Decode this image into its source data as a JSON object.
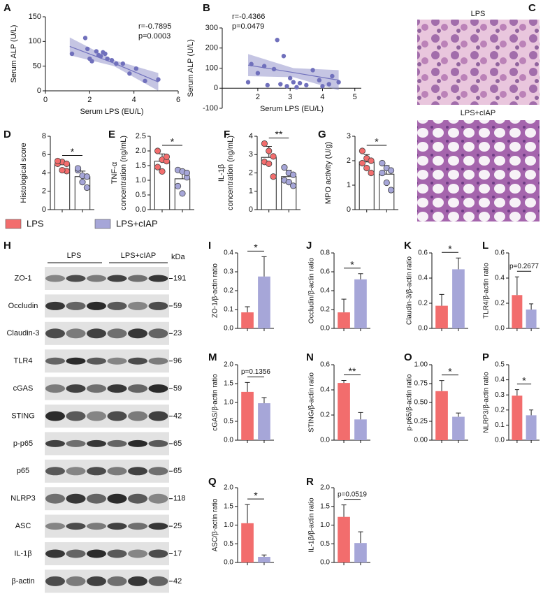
{
  "chart_data": [
    {
      "type": "scatter",
      "panel": "A",
      "x": [
        1.2,
        1.8,
        1.9,
        2.0,
        2.1,
        2.3,
        2.4,
        2.5,
        2.6,
        2.7,
        2.8,
        3.0,
        3.2,
        3.5,
        3.8,
        4.1,
        4.5,
        5.1
      ],
      "y": [
        75,
        107,
        85,
        65,
        60,
        80,
        72,
        70,
        78,
        75,
        65,
        62,
        55,
        55,
        35,
        45,
        20,
        23
      ],
      "color": "#7070bc",
      "fit": {
        "x": [
          1.1,
          3.1,
          5.1
        ],
        "y": [
          90,
          56,
          18
        ],
        "lower": [
          72,
          50,
          0
        ],
        "upper": [
          108,
          62,
          36
        ]
      },
      "fit_color": "#8c8cc8",
      "xlim": [
        0,
        6
      ],
      "ylim": [
        0,
        150
      ],
      "xticks": [
        0,
        2,
        4,
        6
      ],
      "yticks": [
        0,
        50,
        100,
        150
      ],
      "xlabel": "Serum LPS (EU/L)",
      "ylabel": "Serum ALP (U/L)",
      "annotations": [
        "r=-0.7895",
        "p=0.0003"
      ]
    },
    {
      "type": "scatter",
      "panel": "B",
      "x": [
        1.7,
        1.8,
        2.0,
        2.2,
        2.3,
        2.5,
        2.6,
        2.7,
        2.8,
        2.9,
        3.0,
        3.1,
        3.2,
        3.3,
        3.5,
        3.7,
        3.9,
        4.0,
        4.2,
        4.3,
        4.5
      ],
      "y": [
        30,
        120,
        75,
        110,
        15,
        95,
        240,
        20,
        160,
        10,
        50,
        30,
        5,
        25,
        15,
        90,
        40,
        10,
        20,
        60,
        30
      ],
      "color": "#7070bc",
      "fit": {
        "x": [
          1.7,
          3.1,
          4.5
        ],
        "y": [
          115,
          78,
          40
        ],
        "lower": [
          60,
          55,
          -10
        ],
        "upper": [
          170,
          100,
          90
        ]
      },
      "fit_color": "#8c8cc8",
      "xlim": [
        0.9,
        5.2
      ],
      "ylim": [
        -100,
        300
      ],
      "xticks": [
        2,
        3,
        4,
        5
      ],
      "yticks": [
        -100,
        0,
        100,
        200,
        300
      ],
      "xlabel": "Serum LPS (EU/L)",
      "ylabel": "Serum ALP (U/L)",
      "annotations": [
        "r=-0.4366",
        "p=0.0479"
      ]
    },
    {
      "type": "bar",
      "panel": "D",
      "values": [
        4.9,
        3.6
      ],
      "errors": [
        0.4,
        0.6
      ],
      "points": [
        [
          5.0,
          5.2,
          4.2,
          5.3,
          4.3,
          5.0
        ],
        [
          4.3,
          3.7,
          2.4,
          4.5,
          3.0,
          3.6
        ]
      ],
      "ylim": [
        0,
        8
      ],
      "yticks": [
        0,
        2,
        4,
        6,
        8
      ],
      "ylabel": [
        "Histological score"
      ],
      "significance": "*"
    },
    {
      "type": "bar",
      "panel": "E",
      "values": [
        1.65,
        1.05
      ],
      "errors": [
        0.25,
        0.3
      ],
      "points": [
        [
          2.0,
          1.7,
          1.65,
          1.45,
          1.3,
          1.8
        ],
        [
          1.35,
          1.3,
          1.1,
          0.8,
          0.55,
          1.25
        ]
      ],
      "ylim": [
        0,
        2.5
      ],
      "yticks": [
        {
          "value": 0,
          "label": "0.0"
        },
        0.5,
        {
          "value": 1,
          "label": "1.0"
        },
        1.5,
        {
          "value": 2,
          "label": "2.0"
        },
        2.5
      ],
      "ylabel": [
        "TNF-α",
        "concentration (ng/mL)"
      ],
      "significance": "*"
    },
    {
      "type": "bar",
      "panel": "F",
      "values": [
        2.85,
        1.8
      ],
      "errors": [
        0.6,
        0.35
      ],
      "points": [
        [
          3.6,
          3.2,
          2.9,
          2.6,
          2.5,
          1.8
        ],
        [
          2.3,
          2.0,
          1.9,
          1.6,
          1.5,
          1.3
        ]
      ],
      "ylim": [
        0,
        4
      ],
      "yticks": [
        0,
        1,
        2,
        3,
        4
      ],
      "ylabel": [
        "IL-1β",
        "concentration (ng/mL)"
      ],
      "significance": "**"
    },
    {
      "type": "bar",
      "panel": "G",
      "values": [
        1.95,
        1.45
      ],
      "errors": [
        0.3,
        0.35
      ],
      "points": [
        [
          2.4,
          2.1,
          2.0,
          1.9,
          1.7,
          1.5
        ],
        [
          1.9,
          1.7,
          1.6,
          1.5,
          1.1,
          0.8
        ]
      ],
      "ylim": [
        0,
        3
      ],
      "yticks": [
        0,
        1,
        2,
        3
      ],
      "ylabel": [
        "MPO activity (U/g)"
      ],
      "significance": "*"
    },
    {
      "type": "bar",
      "panel": "I",
      "values": [
        0.085,
        0.275
      ],
      "errors": [
        0.03,
        0.105
      ],
      "ylim": [
        0,
        0.4
      ],
      "yticks": [
        {
          "value": 0,
          "label": "0.0"
        },
        0.1,
        0.2,
        0.3,
        0.4
      ],
      "ylabel": [
        "ZO-1/β-actin ratio"
      ],
      "significance": "*"
    },
    {
      "type": "bar",
      "panel": "J",
      "values": [
        0.17,
        0.52
      ],
      "errors": [
        0.14,
        0.06
      ],
      "ylim": [
        0,
        0.8
      ],
      "yticks": [
        {
          "value": 0,
          "label": "0.0"
        },
        0.2,
        0.4,
        0.6,
        0.8
      ],
      "ylabel": [
        "Occludin/β-actin ratio"
      ],
      "significance": "*"
    },
    {
      "type": "bar",
      "panel": "K",
      "values": [
        0.18,
        0.47
      ],
      "errors": [
        0.09,
        0.09
      ],
      "ylim": [
        0,
        0.6
      ],
      "yticks": [
        {
          "value": 0,
          "label": "0.0"
        },
        0.2,
        0.4,
        0.6
      ],
      "ylabel": [
        "Claudin-3/β-actin ratio"
      ],
      "significance": "*"
    },
    {
      "type": "bar",
      "panel": "L",
      "values": [
        0.265,
        0.15
      ],
      "errors": [
        0.145,
        0.045
      ],
      "ylim": [
        0,
        0.6
      ],
      "yticks": [
        {
          "value": 0,
          "label": "0.0"
        },
        0.2,
        0.4,
        0.6
      ],
      "ylabel": [
        "TLR4/β-actin ratio"
      ],
      "significance": "p=0.2677"
    },
    {
      "type": "bar",
      "panel": "M",
      "values": [
        1.28,
        0.98
      ],
      "errors": [
        0.25,
        0.15
      ],
      "ylim": [
        0,
        2
      ],
      "yticks": [
        {
          "value": 0,
          "label": "0.0"
        },
        0.5,
        {
          "value": 1,
          "label": "1.0"
        },
        1.5,
        {
          "value": 2,
          "label": "2.0"
        }
      ],
      "ylabel": [
        "cGAS/β-actin ratio"
      ],
      "significance": "p=0.1356"
    },
    {
      "type": "bar",
      "panel": "N",
      "values": [
        0.455,
        0.165
      ],
      "errors": [
        0.02,
        0.055
      ],
      "ylim": [
        0,
        0.6
      ],
      "yticks": [
        {
          "value": 0,
          "label": "0.0"
        },
        0.2,
        0.4,
        0.6
      ],
      "ylabel": [
        "STING/β-actin ratio"
      ],
      "significance": "**"
    },
    {
      "type": "bar",
      "panel": "O",
      "values": [
        0.65,
        0.31
      ],
      "errors": [
        0.14,
        0.05
      ],
      "ylim": [
        0,
        1
      ],
      "yticks": [
        {
          "value": 0,
          "label": "0.00"
        },
        0.25,
        {
          "value": 0.5,
          "label": "0.50"
        },
        0.75,
        {
          "value": 1,
          "label": "1.00"
        }
      ],
      "ylabel": [
        "p-p65/β-actin ratio"
      ],
      "significance": "*"
    },
    {
      "type": "bar",
      "panel": "P",
      "values": [
        0.295,
        0.165
      ],
      "errors": [
        0.04,
        0.035
      ],
      "ylim": [
        0,
        0.5
      ],
      "yticks": [
        {
          "value": 0,
          "label": "0.0"
        },
        0.1,
        0.2,
        0.3,
        0.4,
        0.5
      ],
      "ylabel": [
        "NLRP3/β-actin ratio"
      ],
      "significance": "*"
    },
    {
      "type": "bar",
      "panel": "Q",
      "values": [
        1.05,
        0.15
      ],
      "errors": [
        0.5,
        0.05
      ],
      "ylim": [
        0,
        2
      ],
      "yticks": [
        {
          "value": 0,
          "label": "0.0"
        },
        0.5,
        {
          "value": 1,
          "label": "1.0"
        },
        1.5,
        {
          "value": 2,
          "label": "2.0"
        }
      ],
      "ylabel": [
        "ASC/β-actin ratio"
      ],
      "significance": "*"
    },
    {
      "type": "bar",
      "panel": "R",
      "values": [
        1.22,
        0.52
      ],
      "errors": [
        0.32,
        0.3
      ],
      "ylim": [
        0,
        2
      ],
      "yticks": [
        {
          "value": 0,
          "label": "0.0"
        },
        0.5,
        {
          "value": 1,
          "label": "1.0"
        },
        1.5,
        {
          "value": 2,
          "label": "2.0"
        }
      ],
      "ylabel": [
        "IL-1β/β-actin ratio"
      ],
      "significance": "p=0.0519"
    }
  ],
  "legend": {
    "items": [
      {
        "name": "LPS",
        "color": "#f26d6d"
      },
      {
        "name": "LPS+cIAP",
        "color": "#a6a6d8"
      }
    ]
  },
  "images": {
    "panel": "C",
    "labels": [
      "LPS",
      "LPS+cIAP"
    ]
  },
  "blot": {
    "panel": "H",
    "groups": [
      "LPS",
      "LPS+cIAP"
    ],
    "unit": "kDa",
    "rows": [
      {
        "protein": "ZO-1",
        "kda": 191
      },
      {
        "protein": "Occludin",
        "kda": 59
      },
      {
        "protein": "Claudin-3",
        "kda": 23
      },
      {
        "protein": "TLR4",
        "kda": 96
      },
      {
        "protein": "cGAS",
        "kda": 59
      },
      {
        "protein": "STING",
        "kda": 42
      },
      {
        "protein": "p-p65",
        "kda": 65
      },
      {
        "protein": "p65",
        "kda": 65
      },
      {
        "protein": "NLRP3",
        "kda": 118
      },
      {
        "protein": "ASC",
        "kda": 25
      },
      {
        "protein": "IL-1β",
        "kda": 17
      },
      {
        "protein": "β-actin",
        "kda": 42
      }
    ]
  }
}
